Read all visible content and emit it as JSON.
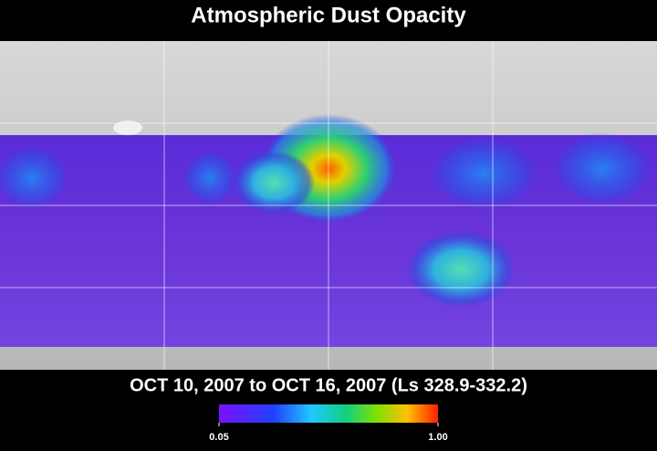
{
  "header": {
    "title": "Atmospheric Dust Opacity"
  },
  "map": {
    "date_range": "OCT 10, 2007 to OCT 16, 2007 (Ls 328.9-332.2)"
  },
  "colorbar": {
    "clim": [
      0.05,
      1
    ],
    "ticks": [
      0.05,
      {
        "value": 1,
        "label": "1.00"
      }
    ]
  }
}
